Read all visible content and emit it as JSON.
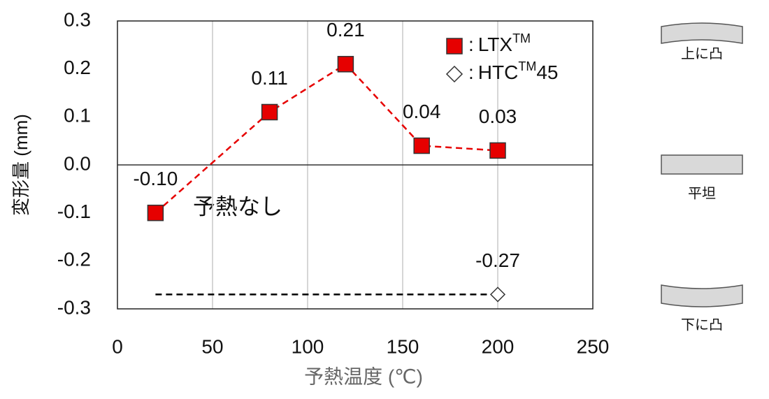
{
  "chart_data": {
    "type": "line",
    "x_label": "予熱温度 (℃)",
    "y_label": "変形量 (mm)",
    "xlim": [
      0,
      250
    ],
    "xticks": [
      0,
      50,
      100,
      150,
      200,
      250
    ],
    "ylim": [
      -0.3,
      0.3
    ],
    "yticks": [
      {
        "value": -0.3,
        "label": "-0.3"
      },
      {
        "value": -0.2,
        "label": "-0.2"
      },
      {
        "value": -0.1,
        "label": "-0.1"
      },
      {
        "value": 0,
        "label": "0.0"
      },
      {
        "value": 0.1,
        "label": "0.1"
      },
      {
        "value": 0.2,
        "label": "0.2"
      },
      {
        "value": 0.3,
        "label": "0.3"
      }
    ],
    "grid": "x",
    "legend_separator": ":",
    "series": [
      {
        "name": "LTX",
        "name_sup": "TM",
        "color": "#e60000",
        "marker": "square",
        "line_color": "#e60000",
        "x": [
          20,
          80,
          120,
          160,
          200
        ],
        "values": [
          -0.1,
          0.11,
          0.21,
          0.04,
          0.03
        ],
        "value_labels": [
          "-0.10",
          "0.11",
          "0.21",
          "0.04",
          "0.03"
        ],
        "markers": [
          true,
          true,
          true,
          true,
          true
        ]
      },
      {
        "name": "HTC",
        "name_sup": "TM",
        "name_after": "45",
        "color": "#ffffff",
        "marker": "diamond",
        "line_color": "#000000",
        "x": [
          20,
          200
        ],
        "values": [
          -0.27,
          -0.27
        ],
        "value_labels": [
          null,
          "-0.27"
        ],
        "markers": [
          false,
          true
        ]
      }
    ],
    "annotation": "予熱なし"
  },
  "shape_legend": {
    "items": [
      "上に凸",
      "平坦",
      "下に凸"
    ]
  }
}
